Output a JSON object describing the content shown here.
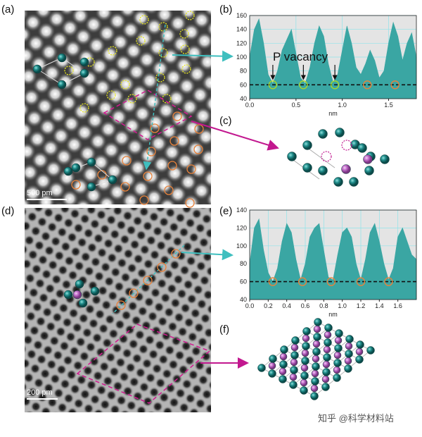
{
  "panel_labels": [
    "(a)",
    "(b)",
    "(c)",
    "(d)",
    "(e)",
    "(f)"
  ],
  "scale_bars": [
    "500 pm",
    "200 pm"
  ],
  "watermark": "知乎 @科学材料站",
  "chart_data": [
    {
      "type": "area",
      "x_label": "nm",
      "x": [
        0,
        0.05,
        0.1,
        0.15,
        0.2,
        0.25,
        0.3,
        0.35,
        0.4,
        0.45,
        0.5,
        0.55,
        0.6,
        0.65,
        0.7,
        0.75,
        0.8,
        0.85,
        0.9,
        0.95,
        1.0,
        1.05,
        1.1,
        1.15,
        1.2,
        1.25,
        1.3,
        1.35,
        1.4,
        1.45,
        1.5,
        1.55,
        1.6,
        1.65,
        1.7,
        1.75,
        1.8
      ],
      "series": [
        {
          "color": "#3aa6a3",
          "values": [
            100,
            140,
            155,
            120,
            75,
            62,
            80,
            110,
            125,
            140,
            105,
            70,
            62,
            85,
            120,
            145,
            130,
            90,
            64,
            75,
            110,
            145,
            120,
            85,
            75,
            90,
            110,
            95,
            70,
            80,
            120,
            150,
            130,
            95,
            120,
            135,
            100
          ]
        }
      ],
      "xlim": [
        0,
        1.8
      ],
      "xticks": [
        {
          "value": 0,
          "label": "0.0"
        },
        0.5,
        {
          "value": 1,
          "label": "1.0"
        },
        1.5
      ],
      "ylim": [
        40,
        160
      ],
      "yticks": [
        40,
        60,
        80,
        100,
        120,
        140,
        160
      ],
      "grid": true,
      "reference_line": 60,
      "markers": [
        {
          "x": 0.25,
          "y": 60,
          "color": "#a8d62a"
        },
        {
          "x": 0.58,
          "y": 60,
          "color": "#a8d62a"
        },
        {
          "x": 0.92,
          "y": 60,
          "color": "#a8d62a"
        },
        {
          "x": 1.27,
          "y": 60,
          "color": "#e8823a"
        },
        {
          "x": 1.57,
          "y": 60,
          "color": "#e8823a"
        }
      ],
      "annotation": "P vacancy"
    },
    {
      "type": "area",
      "x_label": "nm",
      "x": [
        0,
        0.05,
        0.1,
        0.15,
        0.2,
        0.25,
        0.3,
        0.35,
        0.4,
        0.45,
        0.5,
        0.55,
        0.6,
        0.65,
        0.7,
        0.75,
        0.8,
        0.85,
        0.9,
        0.95,
        1.0,
        1.05,
        1.1,
        1.15,
        1.2,
        1.25,
        1.3,
        1.35,
        1.4,
        1.45,
        1.5,
        1.55,
        1.6,
        1.65,
        1.7,
        1.75,
        1.8
      ],
      "series": [
        {
          "color": "#3aa6a3",
          "values": [
            80,
            120,
            130,
            95,
            70,
            60,
            75,
            105,
            125,
            115,
            85,
            62,
            80,
            110,
            120,
            125,
            95,
            65,
            62,
            90,
            115,
            120,
            110,
            80,
            62,
            85,
            115,
            125,
            105,
            80,
            62,
            75,
            110,
            120,
            105,
            90,
            85
          ]
        }
      ],
      "xlim": [
        0,
        1.8
      ],
      "xticks": [
        {
          "value": 0,
          "label": "0.0"
        },
        0.2,
        0.4,
        0.6,
        0.8,
        {
          "value": 1,
          "label": "1.0"
        },
        1.2,
        1.4,
        1.6
      ],
      "ylim": [
        40,
        140
      ],
      "yticks": [
        40,
        60,
        80,
        100,
        120,
        140
      ],
      "grid": true,
      "reference_line": 60,
      "markers": [
        {
          "x": 0.25,
          "y": 60,
          "color": "#e8823a"
        },
        {
          "x": 0.57,
          "y": 60,
          "color": "#e8823a"
        },
        {
          "x": 0.88,
          "y": 60,
          "color": "#e8823a"
        },
        {
          "x": 1.2,
          "y": 60,
          "color": "#e8823a"
        },
        {
          "x": 1.5,
          "y": 60,
          "color": "#e8823a"
        }
      ]
    }
  ]
}
